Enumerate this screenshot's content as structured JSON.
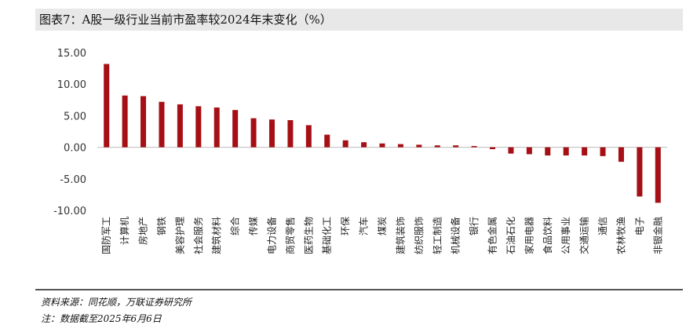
{
  "title": "图表7：A股一级行业当前市盈率较2024年末变化（%）",
  "source": "资料来源：同花顺，万联证券研究所",
  "note": "注：数据截至2025年6月6日",
  "chart_data": {
    "type": "bar",
    "title": "图表7：A股一级行业当前市盈率较2024年末变化（%）",
    "xlabel": "",
    "ylabel": "",
    "ylim": [
      -10,
      15
    ],
    "yticks": [
      15,
      10,
      5,
      0,
      -5,
      -10
    ],
    "ytick_labels": [
      "15.00",
      "10.00",
      "5.00",
      "0.00",
      "-5.00",
      "-10.00"
    ],
    "grid": false,
    "legend": "none",
    "bar_color": "#a50f15",
    "categories": [
      "国防军工",
      "计算机",
      "房地产",
      "钢铁",
      "美容护理",
      "社会服务",
      "建筑材料",
      "综合",
      "传媒",
      "电力设备",
      "商贸零售",
      "医药生物",
      "基础化工",
      "环保",
      "汽车",
      "煤炭",
      "建筑装饰",
      "纺织服饰",
      "轻工制造",
      "机械设备",
      "银行",
      "有色金属",
      "石油石化",
      "家用电器",
      "食品饮料",
      "公用事业",
      "交通运输",
      "通信",
      "农林牧渔",
      "电子",
      "非银金融"
    ],
    "values": [
      13.2,
      8.2,
      8.1,
      7.2,
      6.8,
      6.5,
      6.3,
      5.9,
      4.6,
      4.4,
      4.3,
      3.5,
      2.0,
      1.1,
      0.8,
      0.6,
      0.5,
      0.4,
      0.3,
      0.3,
      0.2,
      -0.3,
      -1.0,
      -1.1,
      -1.3,
      -1.3,
      -1.3,
      -1.4,
      -2.3,
      -7.8,
      -8.8
    ]
  }
}
